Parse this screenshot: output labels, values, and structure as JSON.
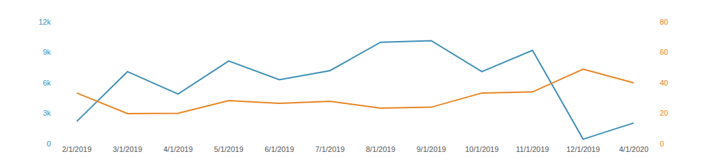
{
  "chart_data": {
    "type": "line",
    "categories": [
      "2/1/2019",
      "3/1/2019",
      "4/1/2019",
      "5/1/2019",
      "6/1/2019",
      "7/1/2019",
      "8/1/2019",
      "9/1/2019",
      "10/1/2019",
      "11/1/2019",
      "12/1/2019",
      "4/1/2020"
    ],
    "series": [
      {
        "color": "#3b8db5",
        "values": [
          2200,
          7100,
          4900,
          8150,
          6300,
          7200,
          10000,
          10150,
          7100,
          9200,
          450,
          2050
        ]
      },
      {
        "color": "#e8821e",
        "axis": "y2",
        "values": [
          33.3,
          19.8,
          20,
          28.3,
          26.5,
          27.9,
          23.4,
          24,
          33.3,
          34,
          49,
          40
        ]
      }
    ],
    "ylim": [
      0,
      12000
    ],
    "yticks": [
      0,
      {
        "value": 3000,
        "label": "3k"
      },
      {
        "value": 6000,
        "label": "6k"
      },
      {
        "value": 9000,
        "label": "9k"
      },
      {
        "value": 12000,
        "label": "12k"
      }
    ],
    "y2lim": [
      0,
      80
    ],
    "y2ticks": [
      0,
      20,
      40,
      60,
      80
    ],
    "grid": false
  }
}
